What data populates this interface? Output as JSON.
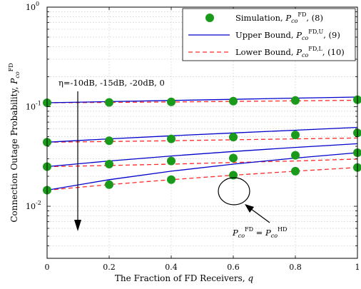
{
  "chart_data": {
    "type": "line",
    "x": [
      0,
      0.2,
      0.4,
      0.6,
      0.8,
      1
    ],
    "xlabel": "The Fraction of FD Receivers, q",
    "ylabel": "Connection Outage Probability, P_co^FD",
    "xlim": [
      0,
      1
    ],
    "ylim": [
      0.003,
      1
    ],
    "yscale": "log",
    "x_ticks": [
      "0",
      "0.2",
      "0.4",
      "0.6",
      "0.8",
      "1"
    ],
    "y_ticks": [
      {
        "value": 0.01,
        "label": "10^-2"
      },
      {
        "value": 0.1,
        "label": "10^-1"
      },
      {
        "value": 1,
        "label": "10^0"
      }
    ],
    "grid": true,
    "legend_position": "top-right",
    "legend": [
      {
        "label": "Simulation, P_co^FD, (8)",
        "style": "marker",
        "color": "#1a9a1a"
      },
      {
        "label": "Upper Bound, P_co^FD,U, (9)",
        "style": "solid",
        "color": "#0000cc"
      },
      {
        "label": "Lower Bound, P_co^FD,L, (10)",
        "style": "dashed",
        "color": "#ff2a2a"
      }
    ],
    "series": [
      {
        "simulation": [
          0.1095,
          0.1105,
          0.112,
          0.1135,
          0.1155,
          0.1175
        ],
        "upper": [
          0.1095,
          0.1125,
          0.1155,
          0.1185,
          0.122,
          0.125
        ],
        "lower": [
          0.1095,
          0.1105,
          0.1115,
          0.113,
          0.1145,
          0.116
        ]
      },
      {
        "simulation": [
          0.044,
          0.0455,
          0.0475,
          0.0495,
          0.052,
          0.0545
        ],
        "upper": [
          0.044,
          0.0475,
          0.051,
          0.0545,
          0.058,
          0.062
        ],
        "lower": [
          0.044,
          0.0447,
          0.0455,
          0.0465,
          0.0475,
          0.0485
        ]
      },
      {
        "simulation": [
          0.025,
          0.0265,
          0.0285,
          0.0305,
          0.0325,
          0.0345
        ],
        "upper": [
          0.025,
          0.0285,
          0.032,
          0.0355,
          0.039,
          0.0425
        ],
        "lower": [
          0.025,
          0.0257,
          0.0265,
          0.0275,
          0.0285,
          0.0298
        ]
      },
      {
        "simulation": [
          0.0145,
          0.0165,
          0.0185,
          0.0205,
          0.0225,
          0.0245
        ],
        "upper": [
          0.0145,
          0.0185,
          0.0225,
          0.0265,
          0.0305,
          0.0345
        ],
        "lower": [
          0.0145,
          0.0165,
          0.0185,
          0.0205,
          0.0225,
          0.0245
        ]
      }
    ],
    "annotations": {
      "eta_label": "η=-10dB, -15dB, -20dB, 0",
      "equality_label": "P_co^FD = P_co^HD",
      "circled_point": {
        "x": 0.6,
        "y": 0.0205
      }
    }
  },
  "colors": {
    "simulation": "#1a9a1a",
    "upper": "#0000cc",
    "lower": "#ff2a2a",
    "grid": "#c8c8c8"
  }
}
